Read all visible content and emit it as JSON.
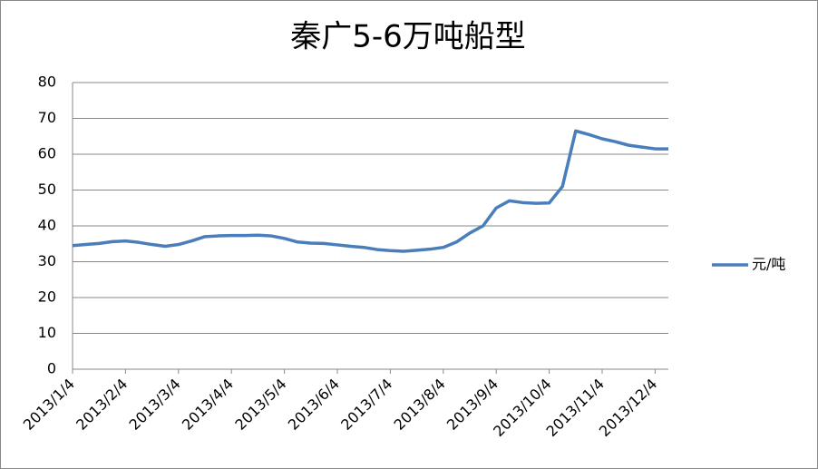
{
  "chart_data": {
    "type": "line",
    "title": "秦广5-6万吨船型",
    "categories": [
      "2013/1/4",
      null,
      null,
      null,
      "2013/2/4",
      null,
      null,
      null,
      "2013/3/4",
      null,
      null,
      null,
      "2013/4/4",
      null,
      null,
      null,
      "2013/5/4",
      null,
      null,
      null,
      "2013/6/4",
      null,
      null,
      null,
      "2013/7/4",
      null,
      null,
      null,
      "2013/8/4",
      null,
      null,
      null,
      "2013/9/4",
      null,
      null,
      null,
      "2013/10/4",
      null,
      null,
      null,
      "2013/11/4",
      null,
      null,
      null,
      "2013/12/4",
      null
    ],
    "series": [
      {
        "name": "元/吨",
        "color": "#4a7ebb",
        "values": [
          34.5,
          34.8,
          35.1,
          35.6,
          35.8,
          35.4,
          34.8,
          34.3,
          34.8,
          35.8,
          37.0,
          37.2,
          37.3,
          37.3,
          37.4,
          37.2,
          36.5,
          35.5,
          35.2,
          35.1,
          34.7,
          34.3,
          34.0,
          33.4,
          33.1,
          32.9,
          33.2,
          33.5,
          34.0,
          35.5,
          38.0,
          40.0,
          45.0,
          47.0,
          46.5,
          46.3,
          46.4,
          51.0,
          66.5,
          65.5,
          64.3,
          63.5,
          62.5,
          62.0,
          61.5,
          61.5
        ]
      }
    ],
    "ylim": [
      0,
      80
    ],
    "yticks": [
      0,
      10,
      20,
      30,
      40,
      50,
      60,
      70,
      80
    ],
    "grid": true,
    "legend": "right"
  }
}
